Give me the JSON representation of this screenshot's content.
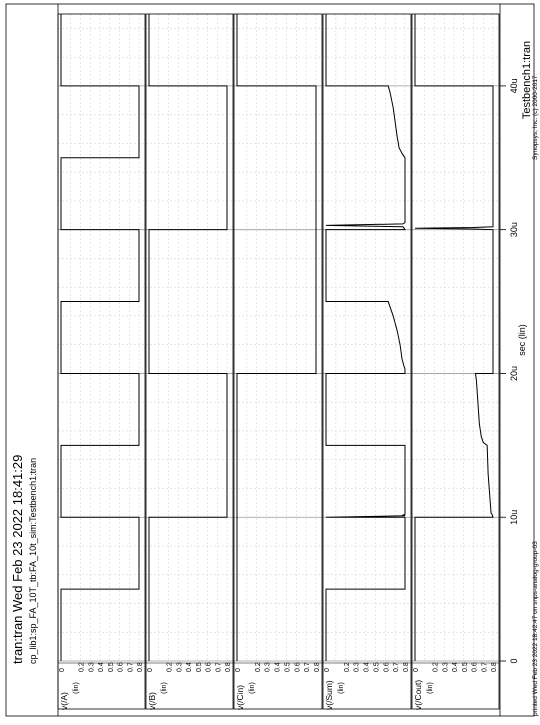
{
  "header": {
    "title": "tran:tran Wed Feb 23 2022 18:41:29",
    "subtitle": "cp_lib1:sp_FA_10T_tb:FA_10t_sim:Testbench1:tran",
    "testbench": "Testbench1:tran"
  },
  "footer": {
    "printed": "printed Wed Feb 23 2022 18:42:47 on snps-analog-group-03",
    "copyright": "Synopsys, Inc. (c) 2000-2017"
  },
  "chart_data": {
    "type": "line",
    "x_axis": {
      "label": "sec (lin)",
      "ticks": [
        "0",
        "10u",
        "20u",
        "30u",
        "40u"
      ],
      "range": [
        0,
        4.5e-05
      ]
    },
    "y_axis": {
      "ylabel": "(lin)",
      "ticks": [
        "0",
        "0.2",
        "0.3",
        "0.4",
        "0.5",
        "0.6",
        "0.7",
        "0.8"
      ],
      "range": [
        0,
        0.8
      ]
    },
    "grid": true,
    "panels": [
      {
        "name": "v(A)",
        "label": "v(/A)",
        "series": [
          {
            "x": [
              0,
              5e-06,
              5e-06,
              1e-05,
              1e-05,
              1.5e-05,
              1.5e-05,
              2e-05,
              2e-05,
              2.5e-05,
              2.5e-05,
              3e-05,
              3e-05,
              3.5e-05,
              3.5e-05,
              4e-05,
              4e-05,
              4.5e-05
            ],
            "y": [
              0,
              0,
              0.8,
              0.8,
              0,
              0,
              0.8,
              0.8,
              0,
              0,
              0.8,
              0.8,
              0,
              0,
              0.8,
              0.8,
              0,
              0
            ]
          }
        ]
      },
      {
        "name": "v(B)",
        "label": "v(/B)",
        "series": [
          {
            "x": [
              0,
              1e-05,
              1e-05,
              2e-05,
              2e-05,
              3e-05,
              3e-05,
              4e-05,
              4e-05,
              4.5e-05
            ],
            "y": [
              0,
              0,
              0.8,
              0.8,
              0,
              0,
              0.8,
              0.8,
              0,
              0
            ]
          }
        ]
      },
      {
        "name": "v(Cin)",
        "label": "v(/Cin)",
        "series": [
          {
            "x": [
              0,
              2e-05,
              2e-05,
              4e-05,
              4e-05,
              4.5e-05
            ],
            "y": [
              0,
              0,
              0.8,
              0.8,
              0,
              0
            ]
          }
        ]
      },
      {
        "name": "v(Sum)",
        "label": "v(/Sum)",
        "series": [
          {
            "x": [
              0,
              5e-06,
              5e-06,
              1e-05,
              1e-05,
              1.01e-05,
              1.015e-05,
              1.02e-05,
              1.03e-05,
              1.5e-05,
              1.5e-05,
              2e-05,
              2e-05,
              2.03e-05,
              2.05e-05,
              2.1e-05,
              2.2e-05,
              2.3e-05,
              2.4e-05,
              2.5e-05,
              2.5e-05,
              3e-05,
              3e-05,
              3.02e-05,
              3.03e-05,
              3.04e-05,
              3.05e-05,
              3.5e-05,
              3.53e-05,
              3.57e-05,
              3.65e-05,
              3.75e-05,
              3.85e-05,
              3.95e-05,
              4e-05,
              4e-05,
              4.5e-05
            ],
            "y": [
              0,
              0,
              0.8,
              0.8,
              0,
              0.8,
              0.78,
              0.8,
              0.8,
              0.8,
              0,
              0,
              0.8,
              0.8,
              0.79,
              0.77,
              0.75,
              0.72,
              0.68,
              0.63,
              0,
              0,
              0.8,
              0.78,
              0.0,
              0.78,
              0.8,
              0.8,
              0.77,
              0.74,
              0.72,
              0.7,
              0.68,
              0.65,
              0.63,
              0,
              0
            ]
          }
        ]
      },
      {
        "name": "v(Cout)",
        "label": "v(/Cout)",
        "series": [
          {
            "x": [
              0,
              1e-05,
              1e-05,
              1.02e-05,
              1.03e-05,
              1.3e-05,
              1.5e-05,
              1.52e-05,
              1.56e-05,
              1.65e-05,
              1.75e-05,
              1.85e-05,
              1.95e-05,
              2e-05,
              2e-05,
              3e-05,
              3.005e-05,
              3.01e-05,
              3.015e-05,
              3.02e-05,
              3.03e-05,
              4e-05,
              4e-05,
              4.5e-05
            ],
            "y": [
              0,
              0,
              0.8,
              0.79,
              0.78,
              0.75,
              0.74,
              0.7,
              0.68,
              0.66,
              0.65,
              0.64,
              0.63,
              0.62,
              0.8,
              0.8,
              0.6,
              0.0,
              0.6,
              0.8,
              0.8,
              0.8,
              0,
              0
            ]
          }
        ]
      }
    ]
  }
}
